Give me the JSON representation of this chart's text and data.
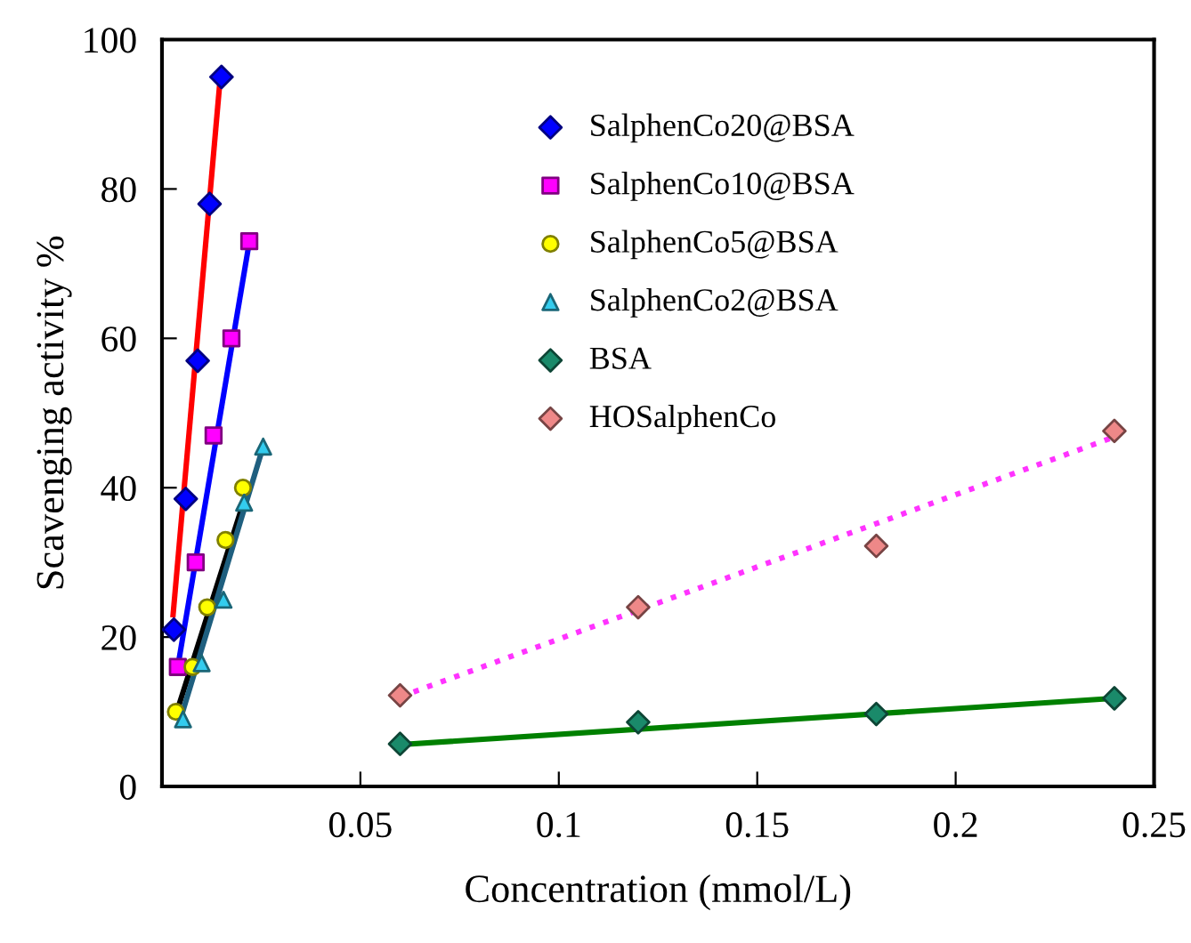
{
  "chart_data": {
    "type": "scatter",
    "xlabel": "Concentration (mmol/L)",
    "ylabel": "Scavenging activity %",
    "xlim": [
      0,
      0.25
    ],
    "ylim": [
      0,
      100
    ],
    "xticks": [
      0.05,
      0.1,
      0.15,
      0.2,
      0.25
    ],
    "yticks": [
      0,
      20,
      40,
      60,
      80,
      100
    ],
    "grid": false,
    "legend": "right",
    "series": [
      {
        "type": "line",
        "color": "#ff0000",
        "line_style": "solid",
        "marker": "none",
        "x": [
          0.0028,
          0.0147
        ],
        "values": [
          23,
          95
        ]
      },
      {
        "type": "line",
        "color": "#0000ff",
        "line_style": "solid",
        "marker": "none",
        "x": [
          0.0043,
          0.0222
        ],
        "values": [
          17,
          73.5
        ]
      },
      {
        "type": "line",
        "color": "#000000",
        "line_style": "solid",
        "marker": "none",
        "x": [
          0.0035,
          0.021
        ],
        "values": [
          9.6,
          38.8
        ]
      },
      {
        "type": "line",
        "color": "#1f5f7f",
        "line_style": "solid",
        "marker": "none",
        "x": [
          0.0043,
          0.0255
        ],
        "values": [
          8.4,
          45.5
        ]
      },
      {
        "type": "line",
        "color": "#008000",
        "line_style": "solid",
        "marker": "none",
        "x": [
          0.06,
          0.24
        ],
        "values": [
          5.6,
          11.8
        ]
      },
      {
        "type": "line",
        "color": "#ff33ff",
        "line_style": "dotted",
        "marker": "none",
        "x": [
          0.06,
          0.24
        ],
        "values": [
          12,
          46.8
        ]
      },
      {
        "name": "SalphenCo20@BSA",
        "color": "#0000ff",
        "marker": "diamond",
        "x": [
          0.003,
          0.006,
          0.009,
          0.012,
          0.015
        ],
        "values": [
          21,
          38.5,
          57,
          78,
          95
        ]
      },
      {
        "name": "SalphenCo10@BSA",
        "color": "#ff00ff",
        "marker": "square",
        "x": [
          0.004,
          0.0085,
          0.013,
          0.0175,
          0.022
        ],
        "values": [
          16,
          30,
          47,
          60,
          73
        ]
      },
      {
        "name": "SalphenCo5@BSA",
        "color": "#ffff00",
        "marker": "circle",
        "x": [
          0.0035,
          0.0077,
          0.0114,
          0.016,
          0.0204
        ],
        "values": [
          10,
          16,
          24,
          33,
          40
        ]
      },
      {
        "name": "SalphenCo2@BSA",
        "color": "#33ccee",
        "marker": "triangle",
        "x": [
          0.0053,
          0.01,
          0.0155,
          0.0207,
          0.0255
        ],
        "values": [
          9,
          16.5,
          25,
          38,
          45.5
        ]
      },
      {
        "name": "BSA",
        "color": "#1a8a6a",
        "marker": "diamond",
        "x": [
          0.06,
          0.12,
          0.18,
          0.24
        ],
        "values": [
          5.7,
          8.6,
          9.7,
          11.8
        ]
      },
      {
        "name": "HOSalphenCo",
        "color": "#ee8888",
        "marker": "diamond",
        "x": [
          0.06,
          0.12,
          0.18,
          0.24
        ],
        "values": [
          12.2,
          24,
          32.2,
          47.6
        ]
      }
    ]
  }
}
